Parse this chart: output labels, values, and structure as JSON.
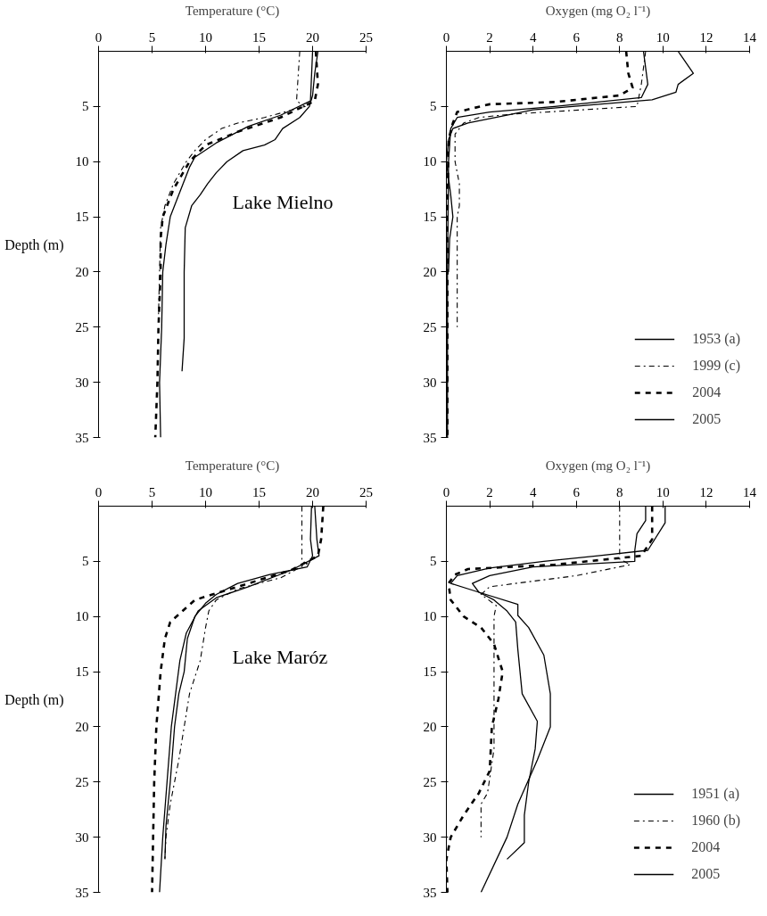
{
  "chart_data": [
    {
      "type": "line",
      "xlabel": "Temperature (°C)",
      "ylabel": "Depth (m)",
      "xlim": [
        0,
        25
      ],
      "xticks": [
        0,
        5,
        10,
        15,
        20,
        25
      ],
      "ylim": [
        35,
        0
      ],
      "yticks": [
        5,
        10,
        15,
        20,
        25,
        30,
        35
      ],
      "grid": false,
      "legend": false,
      "annotations": [
        "Lake Mielno"
      ],
      "series": [
        {
          "color": "#000000",
          "line_style": "solid",
          "x": [
            20.5,
            20.2,
            20,
            19.7,
            18.8,
            17.2,
            16.5,
            15.5,
            13.5,
            12,
            11,
            10.2,
            9.5,
            8.7,
            8.1,
            8.0,
            8.0,
            7.8
          ],
          "values": [
            0,
            2,
            4,
            5,
            6,
            7,
            8,
            8.5,
            9,
            10,
            11,
            12,
            13,
            14,
            16,
            20,
            26,
            29
          ]
        },
        {
          "color": "#000000",
          "line_style": "dashdot",
          "x": [
            18.8,
            18.5,
            19.3,
            15.5,
            13,
            11.5,
            10,
            9,
            8.2,
            7,
            6.2,
            5.8,
            5.7,
            5.6
          ],
          "values": [
            0,
            4.5,
            5,
            6,
            6.5,
            7,
            8,
            9,
            10,
            12,
            14,
            16,
            20,
            24
          ]
        },
        {
          "color": "#000000",
          "line_style": "dashed",
          "x": [
            20.3,
            20.5,
            20.2,
            17,
            13,
            10,
            8.5,
            7,
            6,
            5.8,
            5.8,
            5.6,
            5.5,
            5.3
          ],
          "values": [
            0,
            3,
            4.5,
            6,
            7.3,
            8.5,
            10,
            12.5,
            15,
            17,
            20,
            25,
            30,
            35
          ]
        },
        {
          "color": "#000000",
          "line_style": "solid",
          "x": [
            20,
            19.8,
            17,
            14,
            11,
            9,
            8.5,
            7.5,
            6.7,
            6.3,
            6,
            5.9,
            5.7,
            5.8
          ],
          "values": [
            0,
            4.5,
            5.8,
            6.8,
            8.3,
            9.6,
            10.5,
            13,
            15,
            17.5,
            20,
            25,
            30,
            35
          ]
        }
      ]
    },
    {
      "type": "line",
      "xlabel": "Oxygen (mg O₂ l⁻¹)",
      "xlim": [
        0,
        14
      ],
      "xticks": [
        0,
        2,
        4,
        6,
        8,
        10,
        12,
        14
      ],
      "ylim": [
        35,
        0
      ],
      "yticks": [
        5,
        10,
        15,
        20,
        25,
        30,
        35
      ],
      "grid": false,
      "legend": "bottom right",
      "series": [
        {
          "name": "1953 (a)",
          "color": "#000000",
          "line_style": "solid",
          "x": [
            10.7,
            11.4,
            10.7,
            10.6,
            9.5,
            4,
            3,
            1,
            0.3,
            0.1,
            0,
            0.2,
            0.3,
            0.15,
            0.1
          ],
          "values": [
            0,
            2,
            3,
            3.7,
            4.4,
            5.3,
            5.7,
            6.5,
            7,
            8,
            10,
            13,
            15,
            17,
            20
          ]
        },
        {
          "name": "1999 (c)",
          "color": "#000000",
          "line_style": "dashdot",
          "x": [
            9.2,
            9.0,
            8.8,
            3,
            1.5,
            0.8,
            0.4,
            0.4,
            0.6,
            0.6,
            0.5,
            0.5
          ],
          "values": [
            0,
            3,
            5,
            5.7,
            6,
            6.5,
            7.5,
            10,
            12,
            14,
            15,
            25
          ]
        },
        {
          "name": "2004",
          "color": "#000000",
          "line_style": "dashed",
          "x": [
            8.3,
            8.4,
            8.6,
            8,
            5,
            2,
            0.5,
            0.3,
            0.1,
            0.05,
            0.05
          ],
          "values": [
            0,
            2,
            3.3,
            4,
            4.6,
            4.8,
            5.5,
            6.5,
            8,
            15,
            35
          ]
        },
        {
          "name": "2005",
          "color": "#000000",
          "line_style": "solid",
          "x": [
            9.1,
            9.3,
            9.0,
            5,
            2,
            0.5,
            0.2,
            0.1,
            0.05,
            0.05
          ],
          "values": [
            0,
            3,
            4.2,
            5.0,
            5.5,
            6,
            7,
            10,
            20,
            35
          ]
        }
      ]
    },
    {
      "type": "line",
      "xlabel": "Temperature (°C)",
      "ylabel": "Depth (m)",
      "xlim": [
        0,
        25
      ],
      "xticks": [
        0,
        5,
        10,
        15,
        20,
        25
      ],
      "ylim": [
        35,
        0
      ],
      "yticks": [
        5,
        10,
        15,
        20,
        25,
        30,
        35
      ],
      "grid": false,
      "legend": false,
      "annotations": [
        "Lake Maróz"
      ],
      "series": [
        {
          "color": "#000000",
          "line_style": "solid",
          "x": [
            19.9,
            19.8,
            20,
            19.5,
            16,
            13,
            11,
            10,
            9,
            8.3,
            8,
            7.5,
            7.1,
            6.7,
            6.3,
            6.2
          ],
          "values": [
            0,
            3,
            4.5,
            5.5,
            6.2,
            7,
            8,
            8.8,
            10,
            12,
            15,
            17,
            20,
            25,
            29,
            32
          ]
        },
        {
          "color": "#000000",
          "line_style": "dashdot",
          "x": [
            19,
            19,
            19.5,
            17,
            13,
            11,
            10.3,
            10,
            9.5,
            8.5,
            8,
            7.5,
            6.7,
            6.3,
            6.2
          ],
          "values": [
            0,
            5,
            5.2,
            6.5,
            7.5,
            8.5,
            9.5,
            11,
            14,
            17,
            20,
            23,
            27,
            30,
            32
          ]
        },
        {
          "color": "#000000",
          "line_style": "dashed",
          "x": [
            21,
            20.8,
            20.5,
            18,
            15,
            12,
            9,
            7.5,
            6.7,
            6.2,
            5.8,
            5.6,
            5.4,
            5.2,
            5.1,
            5.0
          ],
          "values": [
            0,
            3,
            4.5,
            5.8,
            6.7,
            7.6,
            8.5,
            9.8,
            10.5,
            12,
            15,
            17.5,
            20,
            25,
            30,
            35
          ]
        },
        {
          "color": "#000000",
          "line_style": "solid",
          "x": [
            20.2,
            20.4,
            20.6,
            18,
            14,
            11,
            9.3,
            8.2,
            7.6,
            7.2,
            6.8,
            6.4,
            6.0,
            5.7
          ],
          "values": [
            0,
            3,
            4.5,
            5.8,
            7.3,
            8.3,
            9.5,
            11.5,
            14,
            17,
            20,
            25,
            30,
            35
          ]
        }
      ]
    },
    {
      "type": "line",
      "xlabel": "Oxygen (mg O₂ l⁻¹)",
      "xlim": [
        0,
        14
      ],
      "xticks": [
        0,
        2,
        4,
        6,
        8,
        10,
        12,
        14
      ],
      "ylim": [
        35,
        0
      ],
      "yticks": [
        5,
        10,
        15,
        20,
        25,
        30,
        35
      ],
      "grid": false,
      "legend": "bottom right",
      "series": [
        {
          "name": "1951 (a)",
          "color": "#000000",
          "line_style": "solid",
          "x": [
            9.2,
            9.2,
            8.8,
            8.7,
            8.7,
            4,
            2,
            1.2,
            1.5,
            2.2,
            2.8,
            3.2,
            3.3,
            3.5,
            4.2,
            4.1,
            3.8,
            3.6,
            3.6,
            2.8
          ],
          "values": [
            0,
            1.3,
            2.5,
            4,
            5,
            5.5,
            6.3,
            7,
            7.8,
            8.5,
            9.5,
            10.5,
            13,
            17,
            19.5,
            22,
            25,
            28,
            30.5,
            32
          ]
        },
        {
          "name": "1960 (b)",
          "color": "#000000",
          "line_style": "dashdot",
          "x": [
            8.0,
            8.0,
            8.5,
            6,
            4,
            2,
            1.6,
            2.3,
            2.2,
            2.2,
            1.9,
            1.6,
            1.6
          ],
          "values": [
            0,
            4.8,
            5.3,
            6.3,
            6.8,
            7.3,
            8,
            9,
            10,
            22,
            26,
            27,
            30
          ]
        },
        {
          "name": "2004",
          "color": "#000000",
          "line_style": "dashed",
          "x": [
            9.5,
            9.5,
            9.0,
            5,
            1,
            0.4,
            0.1,
            0.2,
            0.8,
            1.6,
            2.2,
            2.6,
            2.4,
            2.1,
            2.0,
            1.5,
            0.8,
            0.2,
            0,
            0.05
          ],
          "values": [
            0,
            3,
            4.5,
            5.3,
            5.7,
            6.2,
            7,
            8.5,
            10,
            11,
            12.5,
            15,
            17.5,
            20,
            24,
            26,
            28,
            30,
            32,
            35
          ]
        },
        {
          "name": "2005",
          "color": "#000000",
          "line_style": "solid",
          "x": [
            10.1,
            10.1,
            9.3,
            7,
            4.5,
            2,
            0.5,
            0.2,
            1.5,
            3.3,
            3.3,
            3.8,
            4.5,
            4.8,
            4.8,
            4.2,
            3.3,
            2.8,
            1.6
          ],
          "values": [
            0,
            1.5,
            4,
            4.5,
            5,
            5.6,
            6.3,
            7,
            7.8,
            8.9,
            9.9,
            11,
            13.5,
            17,
            20,
            23,
            27,
            30,
            35
          ]
        }
      ]
    }
  ]
}
